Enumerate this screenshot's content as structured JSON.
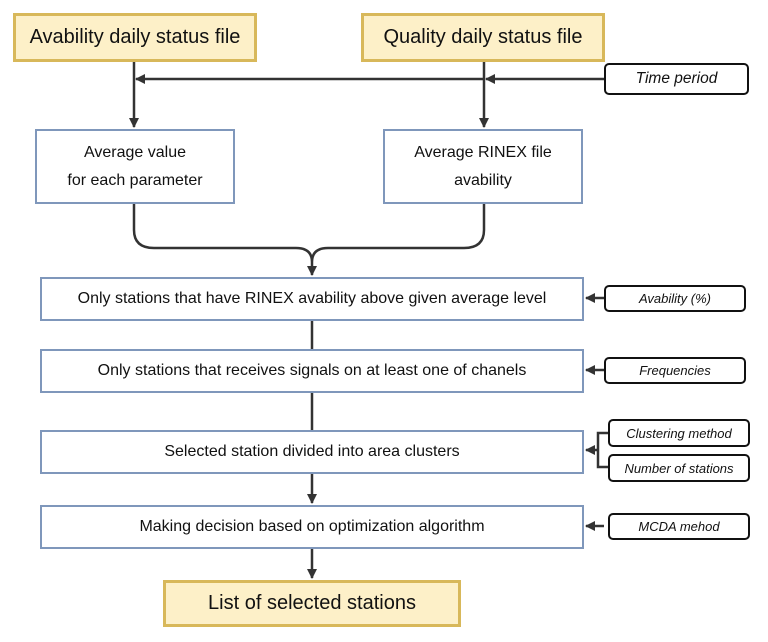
{
  "inputs": {
    "availability_file": "Avability daily status file",
    "quality_file": "Quality daily status file"
  },
  "params": {
    "time_period": "Time period",
    "availability": "Avability (%)",
    "frequencies": "Frequencies",
    "clustering_method": "Clustering method",
    "number_of_stations": "Number of stations",
    "mcda_method": "MCDA mehod"
  },
  "steps": {
    "average_value": [
      "Average value",
      "for each parameter"
    ],
    "average_rinex": [
      "Average RINEX file",
      "avability"
    ],
    "filter_availability": "Only stations that have RINEX avability above given average level",
    "filter_signals": "Only stations that receives signals on at least one of chanels",
    "clusters": "Selected station divided into area clusters",
    "decision": "Making decision based on optimization algorithm"
  },
  "output": {
    "result": "List of selected stations"
  }
}
